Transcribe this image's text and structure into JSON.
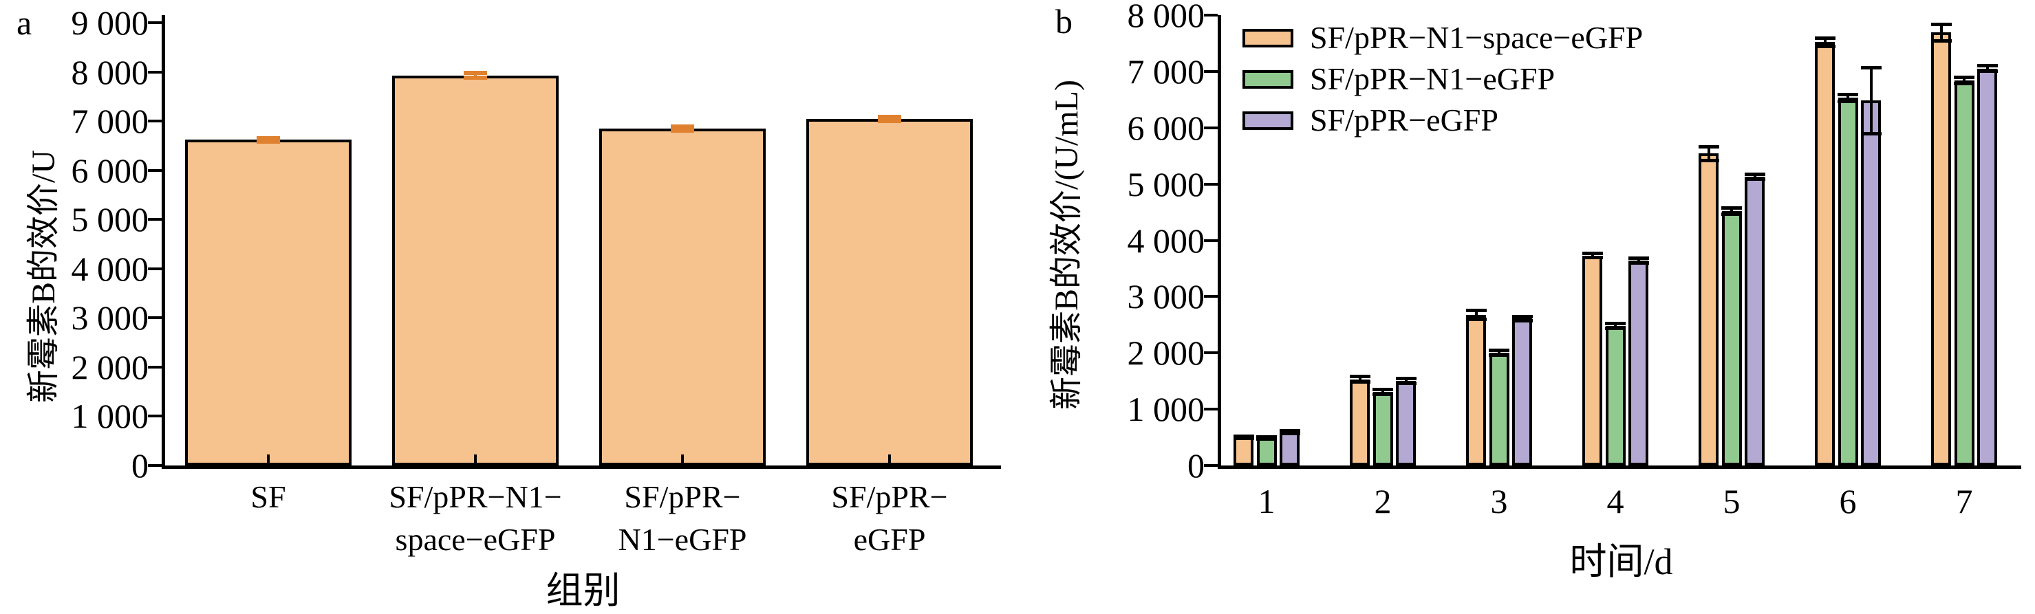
{
  "panels": {
    "a": {
      "letter": "a"
    },
    "b": {
      "letter": "b"
    }
  },
  "colors": {
    "bar_orange": "#F6C28E",
    "bar_green": "#90CA8F",
    "bar_purple": "#B4A9D2",
    "error_orange": "#E0812F",
    "error_black": "#000000",
    "axis": "#000000",
    "background": "#FFFFFF"
  },
  "chart_data": [
    {
      "id": "a",
      "type": "bar",
      "title": "",
      "xlabel": "组别",
      "ylabel": "新霉素B的效价/U",
      "ylim": [
        0,
        9000
      ],
      "grid": false,
      "legend_position": "none",
      "ytick_labels": [
        "0",
        "1 000",
        "2 000",
        "3 000",
        "4 000",
        "5 000",
        "6 000",
        "7 000",
        "8 000",
        "9 000"
      ],
      "categories": [
        "SF",
        "SF/pPR−N1−\nspace−eGFP",
        "SF/pPR−\nN1−eGFP",
        "SF/pPR−\neGFP"
      ],
      "series": [
        {
          "name": "",
          "color": "#F6C28E",
          "error_color": "#E0812F",
          "values": [
            6620,
            7930,
            6850,
            7040
          ],
          "errors": [
            35,
            45,
            45,
            45
          ]
        }
      ],
      "show_legend": false
    },
    {
      "id": "b",
      "type": "grouped-bar",
      "title": "",
      "xlabel": "时间/d",
      "ylabel": "新霉素B的效价/(U/mL)",
      "ylim": [
        0,
        8000
      ],
      "grid": false,
      "legend_position": "top-left-inside",
      "ytick_labels": [
        "0",
        "1 000",
        "2 000",
        "3 000",
        "4 000",
        "5 000",
        "6 000",
        "7 000",
        "8 000"
      ],
      "categories": [
        "1",
        "2",
        "3",
        "4",
        "5",
        "6",
        "7"
      ],
      "series": [
        {
          "name": "SF/pPR−N1−space−eGFP",
          "color": "#F6C28E",
          "error_color": "#000000",
          "values": [
            500,
            1530,
            2670,
            3730,
            5540,
            7520,
            7690
          ],
          "errors": [
            20,
            50,
            80,
            40,
            120,
            70,
            150
          ]
        },
        {
          "name": "SF/pPR−N1−eGFP",
          "color": "#90CA8F",
          "error_color": "#000000",
          "values": [
            490,
            1310,
            2000,
            2480,
            4520,
            6530,
            6840
          ],
          "errors": [
            20,
            40,
            45,
            45,
            50,
            60,
            55
          ]
        },
        {
          "name": "SF/pPR−eGFP",
          "color": "#B4A9D2",
          "error_color": "#000000",
          "values": [
            595,
            1505,
            2610,
            3640,
            5130,
            6480,
            7050
          ],
          "errors": [
            25,
            45,
            40,
            40,
            45,
            585,
            50
          ]
        }
      ],
      "show_legend": true
    }
  ]
}
